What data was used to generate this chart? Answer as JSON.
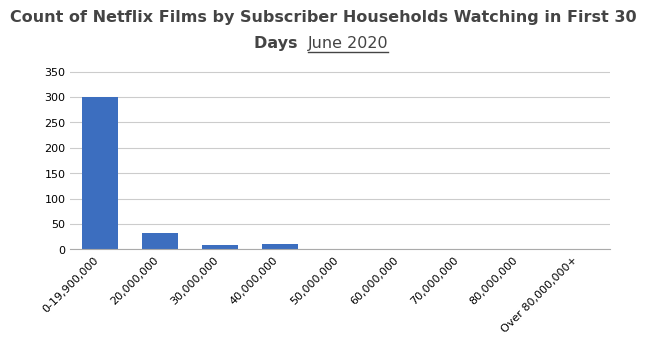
{
  "categories": [
    "0-19,900,000",
    "20,000,000",
    "30,000,000",
    "40,000,000",
    "50,000,000",
    "60,000,000",
    "70,000,000",
    "80,000,000",
    "Over 80,000,000+"
  ],
  "values": [
    300,
    33,
    9,
    10,
    0,
    0,
    0,
    0,
    0
  ],
  "bar_color": "#3c6ebf",
  "ylim": [
    0,
    360
  ],
  "yticks": [
    0,
    50,
    100,
    150,
    200,
    250,
    300,
    350
  ],
  "background_color": "#ffffff",
  "bar_width": 0.6,
  "title_fontsize": 11.5,
  "tick_fontsize": 8.0,
  "title_line1": "Count of Netflix Films by Subscriber Households Watching in First 30",
  "title_line2_bold": "Days ",
  "title_line2_date": "June 2020"
}
